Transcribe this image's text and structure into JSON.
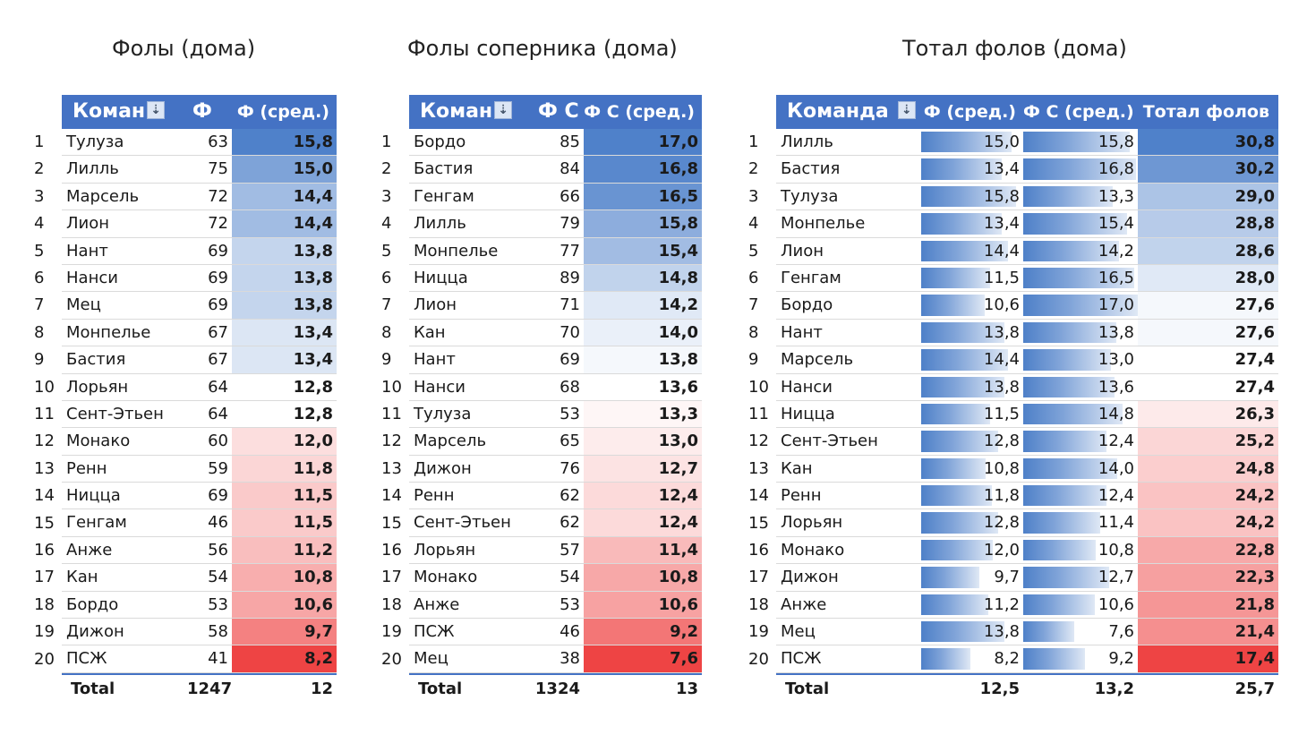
{
  "tables": [
    {
      "title": "Фолы (дома)",
      "headers": [
        "Коман",
        "Ф",
        "Ф (сред.)"
      ],
      "rows": [
        [
          "Тулуза",
          "63",
          "15,8"
        ],
        [
          "Лилль",
          "75",
          "15,0"
        ],
        [
          "Марсель",
          "72",
          "14,4"
        ],
        [
          "Лион",
          "72",
          "14,4"
        ],
        [
          "Нант",
          "69",
          "13,8"
        ],
        [
          "Нанси",
          "69",
          "13,8"
        ],
        [
          "Мец",
          "69",
          "13,8"
        ],
        [
          "Монпелье",
          "67",
          "13,4"
        ],
        [
          "Бастия",
          "67",
          "13,4"
        ],
        [
          "Лорьян",
          "64",
          "12,8"
        ],
        [
          "Сент-Этьен",
          "64",
          "12,8"
        ],
        [
          "Монако",
          "60",
          "12,0"
        ],
        [
          "Ренн",
          "59",
          "11,8"
        ],
        [
          "Ницца",
          "69",
          "11,5"
        ],
        [
          "Генгам",
          "46",
          "11,5"
        ],
        [
          "Анже",
          "56",
          "11,2"
        ],
        [
          "Кан",
          "54",
          "10,8"
        ],
        [
          "Бордо",
          "53",
          "10,6"
        ],
        [
          "Дижон",
          "58",
          "9,7"
        ],
        [
          "ПСЖ",
          "41",
          "8,2"
        ]
      ],
      "total": [
        "Total",
        "1247",
        "12"
      ]
    },
    {
      "title": "Фолы соперника (дома)",
      "headers": [
        "Коман",
        "Ф С",
        "Ф С (сред.)"
      ],
      "rows": [
        [
          "Бордо",
          "85",
          "17,0"
        ],
        [
          "Бастия",
          "84",
          "16,8"
        ],
        [
          "Генгам",
          "66",
          "16,5"
        ],
        [
          "Лилль",
          "79",
          "15,8"
        ],
        [
          "Монпелье",
          "77",
          "15,4"
        ],
        [
          "Ницца",
          "89",
          "14,8"
        ],
        [
          "Лион",
          "71",
          "14,2"
        ],
        [
          "Кан",
          "70",
          "14,0"
        ],
        [
          "Нант",
          "69",
          "13,8"
        ],
        [
          "Нанси",
          "68",
          "13,6"
        ],
        [
          "Тулуза",
          "53",
          "13,3"
        ],
        [
          "Марсель",
          "65",
          "13,0"
        ],
        [
          "Дижон",
          "76",
          "12,7"
        ],
        [
          "Ренн",
          "62",
          "12,4"
        ],
        [
          "Сент-Этьен",
          "62",
          "12,4"
        ],
        [
          "Лорьян",
          "57",
          "11,4"
        ],
        [
          "Монако",
          "54",
          "10,8"
        ],
        [
          "Анже",
          "53",
          "10,6"
        ],
        [
          "ПСЖ",
          "46",
          "9,2"
        ],
        [
          "Мец",
          "38",
          "7,6"
        ]
      ],
      "total": [
        "Total",
        "1324",
        "13"
      ]
    },
    {
      "title": "Тотал фолов (дома)",
      "headers": [
        "Команда",
        "Ф (сред.)",
        "Ф С (сред.)",
        "Тотал фолов"
      ],
      "rows": [
        [
          "Лилль",
          "15,0",
          "15,8",
          "30,8"
        ],
        [
          "Бастия",
          "13,4",
          "16,8",
          "30,2"
        ],
        [
          "Тулуза",
          "15,8",
          "13,3",
          "29,0"
        ],
        [
          "Монпелье",
          "13,4",
          "15,4",
          "28,8"
        ],
        [
          "Лион",
          "14,4",
          "14,2",
          "28,6"
        ],
        [
          "Генгам",
          "11,5",
          "16,5",
          "28,0"
        ],
        [
          "Бордо",
          "10,6",
          "17,0",
          "27,6"
        ],
        [
          "Нант",
          "13,8",
          "13,8",
          "27,6"
        ],
        [
          "Марсель",
          "14,4",
          "13,0",
          "27,4"
        ],
        [
          "Нанси",
          "13,8",
          "13,6",
          "27,4"
        ],
        [
          "Ницца",
          "11,5",
          "14,8",
          "26,3"
        ],
        [
          "Сент-Этьен",
          "12,8",
          "12,4",
          "25,2"
        ],
        [
          "Кан",
          "10,8",
          "14,0",
          "24,8"
        ],
        [
          "Ренн",
          "11,8",
          "12,4",
          "24,2"
        ],
        [
          "Лорьян",
          "12,8",
          "11,4",
          "24,2"
        ],
        [
          "Монако",
          "12,0",
          "10,8",
          "22,8"
        ],
        [
          "Дижон",
          "9,7",
          "12,7",
          "22,3"
        ],
        [
          "Анже",
          "11,2",
          "10,6",
          "21,8"
        ],
        [
          "Мец",
          "13,8",
          "7,6",
          "21,4"
        ],
        [
          "ПСЖ",
          "8,2",
          "9,2",
          "17,4"
        ]
      ],
      "total": [
        "Total",
        "12,5",
        "13,2",
        "25,7"
      ]
    }
  ]
}
